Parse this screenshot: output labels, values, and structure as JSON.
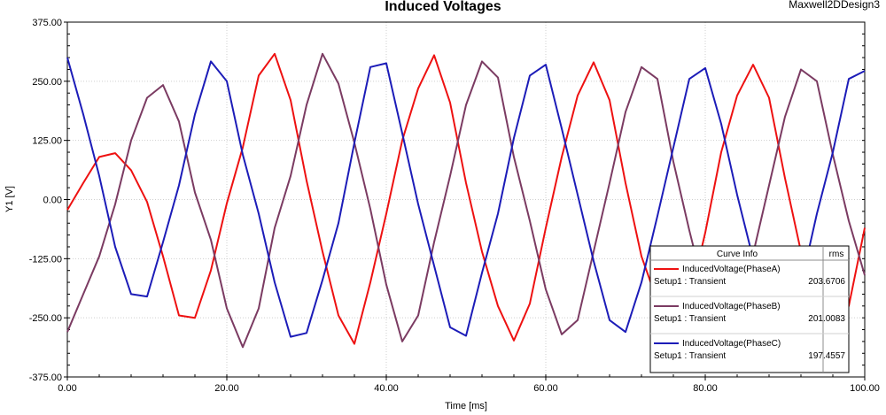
{
  "window": {
    "design_name": "Maxwell2DDesign3"
  },
  "chart_data": {
    "type": "line",
    "title": "Induced Voltages",
    "xlabel": "Time [ms]",
    "ylabel": "Y1 [V]",
    "xlim": [
      0,
      100
    ],
    "ylim": [
      -375,
      375
    ],
    "x_ticks": [
      "0.00",
      "20.00",
      "40.00",
      "60.00",
      "80.00",
      "100.00"
    ],
    "y_ticks": [
      "375.00",
      "250.00",
      "125.00",
      "0.00",
      "-125.00",
      "-250.00",
      "-375.00"
    ],
    "grid": true,
    "legend_header": [
      "Curve Info",
      "rms"
    ],
    "legend_placement": "bottom-right",
    "series": [
      {
        "name": "InducedVoltage(PhaseA)",
        "setup": "Setup1 : Transient",
        "rms": "203.6706",
        "color": "#ee1111",
        "x": [
          0,
          2,
          4,
          6,
          8,
          10,
          12,
          14,
          16,
          18,
          20,
          22,
          24,
          26,
          28,
          30,
          32,
          34,
          36,
          38,
          40,
          42,
          44,
          46,
          48,
          50,
          52,
          54,
          56,
          58,
          60,
          62,
          64,
          66,
          68,
          70,
          72,
          74,
          76,
          78,
          80,
          82,
          84,
          86,
          88,
          90,
          92,
          94,
          96,
          98,
          100
        ],
        "y": [
          -22,
          35,
          90,
          98,
          62,
          -5,
          -120,
          -245,
          -250,
          -150,
          -8,
          110,
          262,
          308,
          210,
          40,
          -110,
          -245,
          -305,
          -175,
          -30,
          125,
          235,
          305,
          205,
          35,
          -110,
          -225,
          -298,
          -220,
          -60,
          90,
          220,
          290,
          210,
          35,
          -120,
          -215,
          -275,
          -215,
          -70,
          100,
          220,
          285,
          215,
          45,
          -110,
          -230,
          -270,
          -225,
          -60
        ]
      },
      {
        "name": "InducedVoltage(PhaseB)",
        "setup": "Setup1 : Transient",
        "rms": "201.0083",
        "color": "#7b3b62",
        "x": [
          0,
          2,
          4,
          6,
          8,
          10,
          12,
          14,
          16,
          18,
          20,
          22,
          24,
          26,
          28,
          30,
          32,
          34,
          36,
          38,
          40,
          42,
          44,
          46,
          48,
          50,
          52,
          54,
          56,
          58,
          60,
          62,
          64,
          66,
          68,
          70,
          72,
          74,
          76,
          78,
          80,
          82,
          84,
          86,
          88,
          90,
          92,
          94,
          96,
          98,
          100
        ],
        "y": [
          -280,
          -200,
          -120,
          -10,
          125,
          215,
          242,
          165,
          15,
          -85,
          -230,
          -312,
          -230,
          -60,
          50,
          200,
          308,
          245,
          120,
          -20,
          -180,
          -300,
          -245,
          -90,
          50,
          200,
          292,
          258,
          90,
          -45,
          -190,
          -285,
          -255,
          -110,
          35,
          185,
          280,
          255,
          80,
          -65,
          -200,
          -272,
          -260,
          -115,
          30,
          175,
          275,
          250,
          95,
          -45,
          -160
        ]
      },
      {
        "name": "InducedVoltage(PhaseC)",
        "setup": "Setup1 : Transient",
        "rms": "197.4557",
        "color": "#1c1cb8",
        "x": [
          0,
          2,
          4,
          6,
          8,
          10,
          12,
          14,
          16,
          18,
          20,
          22,
          24,
          26,
          28,
          30,
          32,
          34,
          36,
          38,
          40,
          42,
          44,
          46,
          48,
          50,
          52,
          54,
          56,
          58,
          60,
          62,
          64,
          66,
          68,
          70,
          72,
          74,
          76,
          78,
          80,
          82,
          84,
          86,
          88,
          90,
          92,
          94,
          96,
          98,
          100
        ],
        "y": [
          300,
          180,
          50,
          -100,
          -200,
          -205,
          -90,
          30,
          180,
          292,
          250,
          95,
          -30,
          -175,
          -290,
          -282,
          -170,
          -50,
          120,
          280,
          288,
          140,
          -10,
          -140,
          -270,
          -288,
          -155,
          -30,
          130,
          262,
          285,
          150,
          10,
          -130,
          -255,
          -280,
          -175,
          -35,
          110,
          255,
          278,
          160,
          10,
          -125,
          -250,
          -265,
          -180,
          -30,
          100,
          255,
          272
        ]
      }
    ]
  }
}
